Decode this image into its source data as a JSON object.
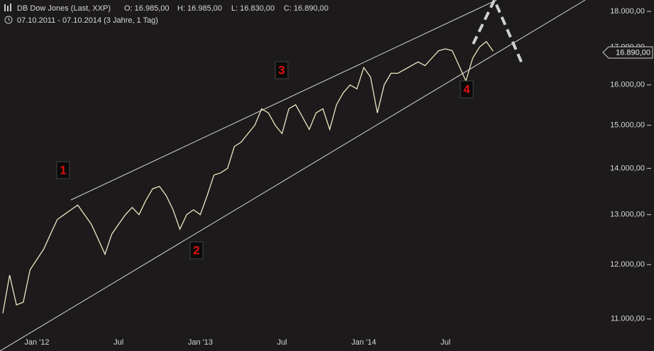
{
  "chart_data": {
    "type": "line",
    "title": "DB Dow Jones (Last, XXP)",
    "ohlc": [
      "O: 16.985,00",
      "H: 16.985,00",
      "L: 16.830,00",
      "C: 16.890,00"
    ],
    "subtitle": "07.10.2011 - 07.10.2014 (3 Jahre, 1 Tag)",
    "last_price_label": "16.890,00",
    "annotations": [
      "1",
      "2",
      "3",
      "4"
    ],
    "log_scale": true,
    "ylim": [
      10450,
      18330
    ],
    "yticks": [
      {
        "value": 11000,
        "label": "11.000,00"
      },
      {
        "value": 12000,
        "label": "12.000,00"
      },
      {
        "value": 13000,
        "label": "13.000,00"
      },
      {
        "value": 14000,
        "label": "14.000,00"
      },
      {
        "value": 15000,
        "label": "15.000,00"
      },
      {
        "value": 16000,
        "label": "16.000,00"
      },
      {
        "value": 17000,
        "label": "17.000,00"
      },
      {
        "value": 18000,
        "label": "18.000,00"
      }
    ],
    "categories": [
      null,
      null,
      null,
      null,
      null,
      "Jan '12",
      null,
      null,
      null,
      null,
      null,
      null,
      null,
      null,
      null,
      null,
      null,
      "Jul",
      null,
      null,
      null,
      null,
      null,
      null,
      null,
      null,
      null,
      null,
      null,
      "Jan '13",
      null,
      null,
      null,
      null,
      null,
      null,
      null,
      null,
      null,
      null,
      null,
      "Jul",
      null,
      null,
      null,
      null,
      null,
      null,
      null,
      null,
      null,
      null,
      null,
      "Jan '14",
      null,
      null,
      null,
      null,
      null,
      null,
      null,
      null,
      null,
      null,
      null,
      "Jul",
      null,
      null,
      null,
      null,
      null,
      null,
      null
    ],
    "series": [
      {
        "color": "#ece8c4",
        "values": [
          11100,
          11800,
          11250,
          11300,
          11900,
          12100,
          12300,
          12600,
          12900,
          13000,
          13100,
          13200,
          13000,
          12800,
          12500,
          12200,
          12600,
          12800,
          13000,
          13150,
          13000,
          13300,
          13550,
          13600,
          13400,
          13100,
          12700,
          13000,
          13100,
          13000,
          13400,
          13850,
          13900,
          14000,
          14500,
          14600,
          14800,
          15000,
          15400,
          15300,
          15000,
          14800,
          15400,
          15500,
          15200,
          14900,
          15300,
          15400,
          14900,
          15500,
          15800,
          16000,
          15900,
          16450,
          16200,
          15300,
          16000,
          16300,
          16300,
          16400,
          16500,
          16600,
          16500,
          16700,
          16900,
          16950,
          16900,
          16500,
          16100,
          16700,
          17000,
          17150,
          16890
        ]
      }
    ]
  }
}
